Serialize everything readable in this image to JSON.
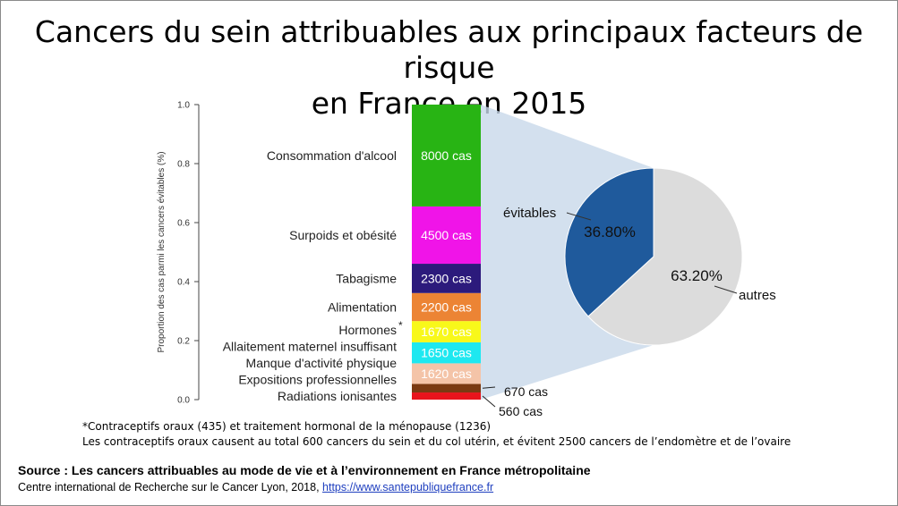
{
  "page": {
    "title_line1": "Cancers du sein attribuables aux principaux facteurs de risque",
    "title_line2": "en France en 2015",
    "footnote_line1": "*Contraceptifs oraux (435) et traitement hormonal de la ménopause (1236)",
    "footnote_line2": "Les contraceptifs oraux causent au total 600 cancers du sein et du col utérin, et évitent 2500 cancers de l’endomètre et de l’ovaire",
    "source_title": "Source : Les cancers attribuables au mode de vie et à l’environnement en France métropolitaine",
    "source_text": "Centre international de Recherche sur le Cancer Lyon, 2018,",
    "source_link": "https://www.santepubliquefrance.fr"
  },
  "chart_data": [
    {
      "type": "bar",
      "stacked": true,
      "ylabel": "Proportion des cas parmi les cancers évitables (%)",
      "ylim": [
        0,
        1.0
      ],
      "yticks": [
        "0.0",
        "0.2",
        "0.4",
        "0.6",
        "0.8",
        "1.0"
      ],
      "series": [
        {
          "name": "Radiations ionisantes",
          "value": 560,
          "label": "560 cas",
          "color": "#e8141c"
        },
        {
          "name": "Expositions professionnelles",
          "value": 670,
          "label": "670 cas",
          "color": "#7a3a12"
        },
        {
          "name": "Manque d'activité physique",
          "value": 1620,
          "label": "1620 cas",
          "color": "#f4c4a8"
        },
        {
          "name": "Allaitement maternel insuffisant",
          "value": 1650,
          "label": "1650 cas",
          "color": "#1ee8f0"
        },
        {
          "name": "Hormones",
          "marker": "*",
          "value": 1670,
          "label": "1670 cas",
          "color": "#f8f81a"
        },
        {
          "name": "Alimentation",
          "value": 2200,
          "label": "2200 cas",
          "color": "#ec8434"
        },
        {
          "name": "Tabagisme",
          "value": 2300,
          "label": "2300 cas",
          "color": "#2c1a7c"
        },
        {
          "name": "Surpoids et obésité",
          "value": 4500,
          "label": "4500 cas",
          "color": "#f014e8"
        },
        {
          "name": "Consommation d'alcool",
          "value": 8000,
          "label": "8000 cas",
          "color": "#28b414"
        }
      ]
    },
    {
      "type": "pie",
      "slices": [
        {
          "name": "évitables",
          "value": 36.8,
          "label": "36.80%",
          "color": "#1f5a9c"
        },
        {
          "name": "autres",
          "value": 63.2,
          "label": "63.20%",
          "color": "#dcdcdc"
        }
      ]
    }
  ]
}
